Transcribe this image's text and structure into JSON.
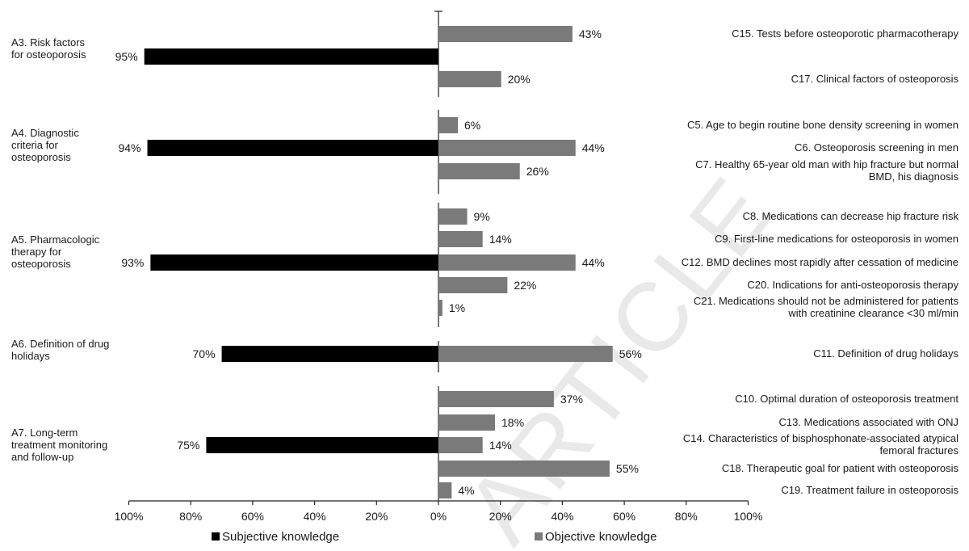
{
  "watermark": "ARTICLE",
  "chart_data": {
    "type": "bar",
    "orientation": "horizontal",
    "diverging": true,
    "xlim": [
      -100,
      100
    ],
    "x_ticks": [
      "100%",
      "80%",
      "60%",
      "40%",
      "20%",
      "0%",
      "20%",
      "40%",
      "60%",
      "80%",
      "100%"
    ],
    "grid": false,
    "legend_position": "bottom",
    "series": [
      {
        "name": "Subjective knowledge",
        "color": "#000000",
        "side": "left"
      },
      {
        "name": "Objective knowledge",
        "color": "#7a7a7a",
        "side": "right"
      }
    ],
    "groups": [
      {
        "label": [
          "A3. Risk factors",
          "for osteoporosis"
        ],
        "subjective": 95,
        "subjective_label": "95%",
        "items": [
          {
            "label": [
              "C15. Tests before osteoporotic pharmacotherapy"
            ],
            "value": 43,
            "value_label": "43%"
          },
          {
            "label": [
              "C17. Clinical factors of osteoporosis"
            ],
            "value": 20,
            "value_label": "20%"
          }
        ]
      },
      {
        "label": [
          "A4. Diagnostic",
          "criteria for",
          "osteoporosis"
        ],
        "subjective": 94,
        "subjective_label": "94%",
        "items": [
          {
            "label": [
              "C5. Age to begin routine bone density screening in women"
            ],
            "value": 6,
            "value_label": "6%"
          },
          {
            "label": [
              "C6. Osteoporosis screening in men"
            ],
            "value": 44,
            "value_label": "44%"
          },
          {
            "label": [
              "C7. Healthy 65-year old man with hip fracture but normal",
              "BMD, his diagnosis"
            ],
            "value": 26,
            "value_label": "26%"
          }
        ]
      },
      {
        "label": [
          "A5. Pharmacologic",
          "therapy for",
          "osteoporosis"
        ],
        "subjective": 93,
        "subjective_label": "93%",
        "items": [
          {
            "label": [
              "C8. Medications can decrease hip fracture risk"
            ],
            "value": 9,
            "value_label": "9%"
          },
          {
            "label": [
              "C9. First-line medications for osteoporosis in women"
            ],
            "value": 14,
            "value_label": "14%"
          },
          {
            "label": [
              "C12. BMD declines most rapidly after cessation of medicine"
            ],
            "value": 44,
            "value_label": "44%"
          },
          {
            "label": [
              "C20. Indications for anti-osteoporosis therapy"
            ],
            "value": 22,
            "value_label": "22%"
          },
          {
            "label": [
              "C21. Medications should not be administered for patients",
              "with creatinine clearance <30 ml/min"
            ],
            "value": 1,
            "value_label": "1%"
          }
        ]
      },
      {
        "label": [
          "A6. Definition of drug",
          "holidays"
        ],
        "subjective": 70,
        "subjective_label": "70%",
        "items": [
          {
            "label": [
              "C11. Definition of drug holidays"
            ],
            "value": 56,
            "value_label": "56%"
          }
        ]
      },
      {
        "label": [
          "A7. Long-term",
          "treatment monitoring",
          "and follow-up"
        ],
        "subjective": 75,
        "subjective_label": "75%",
        "items": [
          {
            "label": [
              "C10. Optimal duration of osteoporosis treatment"
            ],
            "value": 37,
            "value_label": "37%"
          },
          {
            "label": [
              "C13. Medications associated with ONJ"
            ],
            "value": 18,
            "value_label": "18%"
          },
          {
            "label": [
              "C14. Characteristics of bisphosphonate-associated atypical",
              "femoral fractures"
            ],
            "value": 14,
            "value_label": "14%"
          },
          {
            "label": [
              "C18. Therapeutic goal for patient with osteoporosis"
            ],
            "value": 55,
            "value_label": "55%"
          },
          {
            "label": [
              "C19. Treatment failure in osteoporosis"
            ],
            "value": 4,
            "value_label": "4%"
          }
        ]
      }
    ]
  }
}
